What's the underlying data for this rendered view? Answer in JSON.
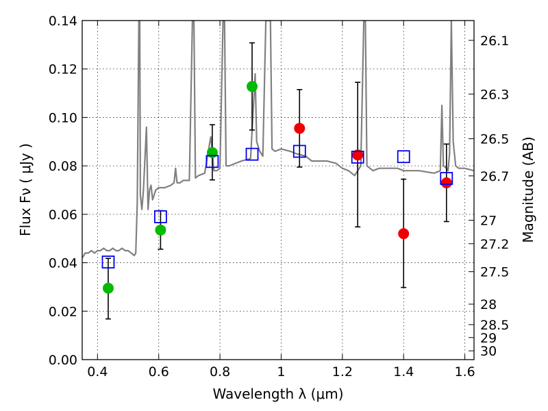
{
  "chart_data": {
    "type": "scatter",
    "xlabel": "Wavelength  λ (μm)",
    "ylabel": "Flux  Fν  ( μJy )",
    "ylabel_right": "Magnitude (AB)",
    "xlim": [
      0.35,
      1.63
    ],
    "ylim": [
      0,
      0.14
    ],
    "grid": true,
    "x_ticks": [
      0.4,
      0.6,
      0.8,
      1.0,
      1.2,
      1.4,
      1.6
    ],
    "x_tick_labels": [
      "0.4",
      "0.6",
      "0.8",
      "1",
      "1.2",
      "1.4",
      "1.6"
    ],
    "y_ticks": [
      0.0,
      0.02,
      0.04,
      0.06,
      0.08,
      0.1,
      0.12,
      0.14
    ],
    "y_tick_labels": [
      "0.00",
      "0.02",
      "0.04",
      "0.06",
      "0.08",
      "0.10",
      "0.12",
      "0.14"
    ],
    "mag_ticks": [
      "26.1",
      "26.3",
      "26.5",
      "26.7",
      "27",
      "27.2",
      "27.5",
      "28",
      "28.5",
      "29",
      "30"
    ],
    "colors": {
      "model": "#808080",
      "green": "#00bb00",
      "red": "#ee0000",
      "square": "#0000ee",
      "errorbar": "#000000"
    },
    "series": [
      {
        "marker": "circle",
        "color": "#00bb00",
        "x": [
          0.435,
          0.606,
          0.775,
          0.905
        ],
        "y": [
          0.0295,
          0.0535,
          0.0855,
          0.1128
        ],
        "yerr_low": [
          0.0168,
          0.0456,
          0.0742,
          0.0948
        ],
        "yerr_high": [
          0.0418,
          0.0615,
          0.097,
          0.1308
        ]
      },
      {
        "marker": "circle",
        "color": "#ee0000",
        "x": [
          1.06,
          1.25,
          1.4,
          1.54
        ],
        "y": [
          0.0955,
          0.0845,
          0.052,
          0.073
        ],
        "yerr_low": [
          0.0795,
          0.0548,
          0.0298,
          0.057
        ],
        "yerr_high": [
          0.1115,
          0.1145,
          0.0745,
          0.089
        ]
      },
      {
        "marker": "open-square",
        "color": "#0000ee",
        "x": [
          0.435,
          0.606,
          0.775,
          0.905,
          1.06,
          1.25,
          1.4,
          1.54
        ],
        "y": [
          0.0403,
          0.059,
          0.0818,
          0.0848,
          0.086,
          0.0836,
          0.0838,
          0.0748
        ]
      }
    ],
    "model_spectrum": {
      "color": "#808080",
      "x": [
        0.35,
        0.36,
        0.37,
        0.38,
        0.39,
        0.4,
        0.41,
        0.42,
        0.43,
        0.44,
        0.45,
        0.46,
        0.47,
        0.48,
        0.49,
        0.5,
        0.51,
        0.52,
        0.525,
        0.53,
        0.535,
        0.538,
        0.54,
        0.545,
        0.55,
        0.56,
        0.565,
        0.57,
        0.575,
        0.58,
        0.59,
        0.6,
        0.62,
        0.64,
        0.65,
        0.655,
        0.66,
        0.67,
        0.68,
        0.7,
        0.71,
        0.715,
        0.72,
        0.73,
        0.75,
        0.77,
        0.775,
        0.78,
        0.79,
        0.8,
        0.81,
        0.815,
        0.82,
        0.83,
        0.85,
        0.87,
        0.9,
        0.915,
        0.92,
        0.93,
        0.94,
        0.95,
        0.955,
        0.96,
        0.965,
        0.97,
        0.98,
        1.0,
        1.03,
        1.05,
        1.08,
        1.1,
        1.15,
        1.18,
        1.2,
        1.22,
        1.24,
        1.26,
        1.27,
        1.275,
        1.28,
        1.3,
        1.32,
        1.35,
        1.38,
        1.4,
        1.45,
        1.5,
        1.52,
        1.525,
        1.53,
        1.54,
        1.545,
        1.55,
        1.556,
        1.562,
        1.57,
        1.58,
        1.6,
        1.63
      ],
      "y": [
        0.042,
        0.044,
        0.044,
        0.045,
        0.044,
        0.045,
        0.045,
        0.046,
        0.045,
        0.045,
        0.046,
        0.045,
        0.045,
        0.046,
        0.045,
        0.045,
        0.044,
        0.043,
        0.044,
        0.065,
        0.14,
        0.14,
        0.068,
        0.062,
        0.07,
        0.096,
        0.062,
        0.07,
        0.072,
        0.066,
        0.07,
        0.071,
        0.071,
        0.072,
        0.073,
        0.079,
        0.073,
        0.073,
        0.074,
        0.074,
        0.14,
        0.14,
        0.075,
        0.076,
        0.077,
        0.092,
        0.086,
        0.078,
        0.078,
        0.079,
        0.14,
        0.14,
        0.08,
        0.08,
        0.081,
        0.082,
        0.083,
        0.118,
        0.09,
        0.086,
        0.084,
        0.14,
        0.14,
        0.14,
        0.14,
        0.087,
        0.086,
        0.087,
        0.086,
        0.085,
        0.084,
        0.082,
        0.082,
        0.081,
        0.079,
        0.078,
        0.076,
        0.08,
        0.14,
        0.14,
        0.08,
        0.078,
        0.079,
        0.079,
        0.079,
        0.078,
        0.078,
        0.077,
        0.078,
        0.105,
        0.08,
        0.079,
        0.078,
        0.085,
        0.14,
        0.09,
        0.08,
        0.079,
        0.079,
        0.078
      ]
    }
  }
}
